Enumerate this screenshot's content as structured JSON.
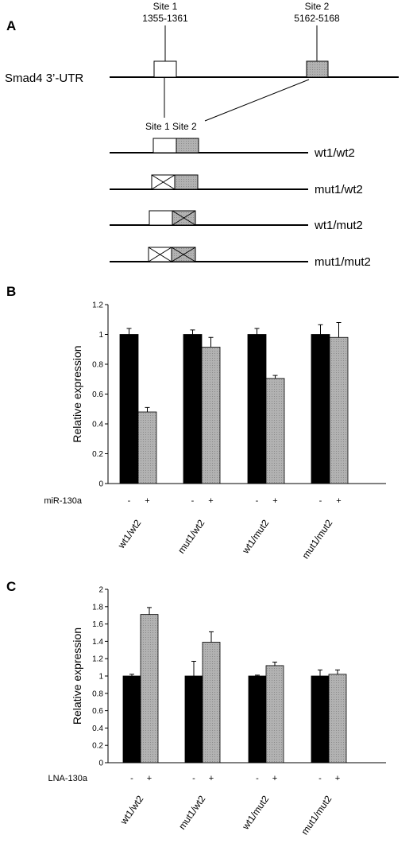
{
  "panelA": {
    "label": "A",
    "utr_label": "Smad4 3’-UTR",
    "site1": {
      "name": "Site 1",
      "range": "1355-1361"
    },
    "site2": {
      "name": "Site 2",
      "range": "5162-5168"
    },
    "zoom_label": "Site 1 Site 2",
    "constructs": [
      {
        "name": "wt1/wt2",
        "site1_mutated": false,
        "site2_mutated": false
      },
      {
        "name": "mut1/wt2",
        "site1_mutated": true,
        "site2_mutated": false
      },
      {
        "name": "wt1/mut2",
        "site1_mutated": false,
        "site2_mutated": true
      },
      {
        "name": "mut1/mut2",
        "site1_mutated": true,
        "site2_mutated": true
      }
    ],
    "colors": {
      "site1": "#ffffff",
      "site2": "#a9a9a9"
    }
  },
  "chart_data": [
    {
      "panel": "B",
      "type": "bar",
      "ylabel": "Relative expression",
      "ylim": [
        0,
        1.2
      ],
      "yticks": [
        "0",
        "0.2",
        "0.4",
        "0.6",
        "0.8",
        "1",
        "1.2"
      ],
      "treatment_label": "miR-130a",
      "signs": [
        "-",
        "+"
      ],
      "categories": [
        "wt1/wt2",
        "mut1/wt2",
        "wt1/mut2",
        "mut1/mut2"
      ],
      "series": [
        {
          "values": [
            1.0,
            1.0,
            1.0,
            1.0
          ],
          "errors": [
            0.04,
            0.03,
            0.04,
            0.065
          ],
          "color": "#000000"
        },
        {
          "values": [
            0.48,
            0.915,
            0.705,
            0.98
          ],
          "errors": [
            0.03,
            0.065,
            0.02,
            0.1
          ],
          "color": "#a9a9a9"
        }
      ]
    },
    {
      "panel": "C",
      "type": "bar",
      "ylabel": "Relative expression",
      "ylim": [
        0,
        2
      ],
      "yticks": [
        "0",
        "0.2",
        "0.4",
        "0.6",
        "0.8",
        "1",
        "1.2",
        "1.4",
        "1.6",
        "1.8",
        "2"
      ],
      "treatment_label": "LNA-130a",
      "signs": [
        "-",
        "+"
      ],
      "categories": [
        "wt1/wt2",
        "mut1/wt2",
        "wt1/mut2",
        "mut1/mut2"
      ],
      "series": [
        {
          "values": [
            1.0,
            1.0,
            1.0,
            1.0
          ],
          "errors": [
            0.02,
            0.17,
            0.01,
            0.07
          ],
          "color": "#000000"
        },
        {
          "values": [
            1.71,
            1.39,
            1.12,
            1.02
          ],
          "errors": [
            0.08,
            0.12,
            0.04,
            0.05
          ],
          "color": "#a9a9a9"
        }
      ]
    }
  ]
}
